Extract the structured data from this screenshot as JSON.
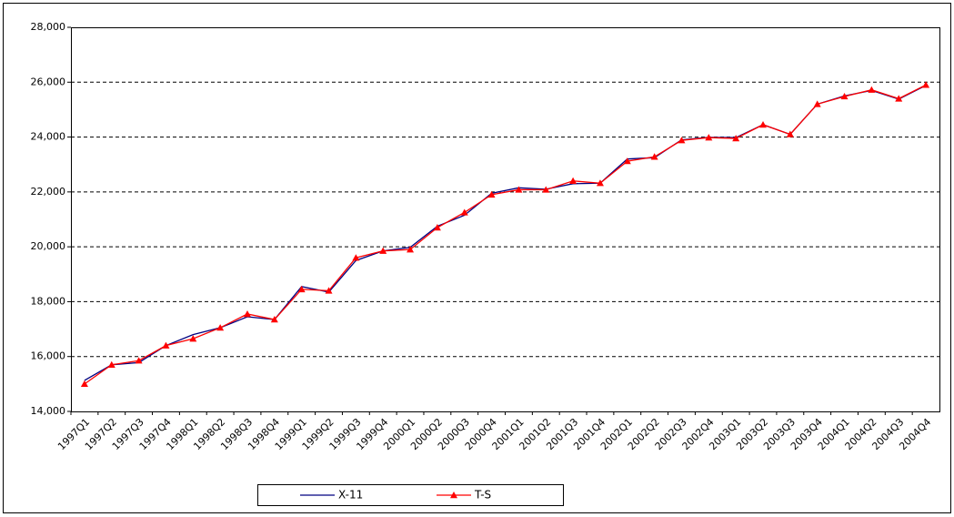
{
  "chart_data": {
    "type": "line",
    "categories": [
      "1997Q1",
      "1997Q2",
      "1997Q3",
      "1997Q4",
      "1998Q1",
      "1998Q2",
      "1998Q3",
      "1998Q4",
      "1999Q1",
      "1999Q2",
      "1999Q3",
      "1999Q4",
      "2000Q1",
      "2000Q2",
      "2000Q3",
      "2000Q4",
      "2001Q1",
      "2001Q2",
      "2001Q3",
      "2001Q4",
      "2002Q1",
      "2002Q2",
      "2002Q3",
      "2002Q4",
      "2003Q1",
      "2003Q2",
      "2003Q3",
      "2003Q4",
      "2004Q1",
      "2004Q2",
      "2004Q3",
      "2004Q4"
    ],
    "series": [
      {
        "name": "X-11",
        "color": "#000080",
        "values": [
          15130,
          15700,
          15780,
          16400,
          16800,
          17050,
          17450,
          17350,
          18550,
          18350,
          19500,
          19850,
          19980,
          20750,
          21150,
          21950,
          22150,
          22100,
          22300,
          22320,
          23200,
          23250,
          23900,
          23990,
          23980,
          24450,
          24100,
          25200,
          25500,
          25700,
          25380,
          25880
        ]
      },
      {
        "name": "T-S",
        "color": "#ff0000",
        "marker": "triangle",
        "values": [
          15000,
          15700,
          15850,
          16400,
          16650,
          17050,
          17550,
          17350,
          18450,
          18400,
          19600,
          19850,
          19900,
          20700,
          21250,
          21900,
          22080,
          22080,
          22400,
          22320,
          23120,
          23280,
          23880,
          23980,
          23950,
          24450,
          24100,
          25200,
          25480,
          25720,
          25400,
          25900
        ]
      }
    ],
    "ylim": [
      14000,
      28000
    ],
    "yticks": [
      {
        "value": 14000,
        "label": "14,000"
      },
      {
        "value": 16000,
        "label": "16,000"
      },
      {
        "value": 18000,
        "label": "18,000"
      },
      {
        "value": 20000,
        "label": "20,000"
      },
      {
        "value": 22000,
        "label": "22,000"
      },
      {
        "value": 24000,
        "label": "24,000"
      },
      {
        "value": 26000,
        "label": "26,000"
      },
      {
        "value": 28000,
        "label": "28,000"
      }
    ],
    "grid": true,
    "legend": "bottom"
  }
}
